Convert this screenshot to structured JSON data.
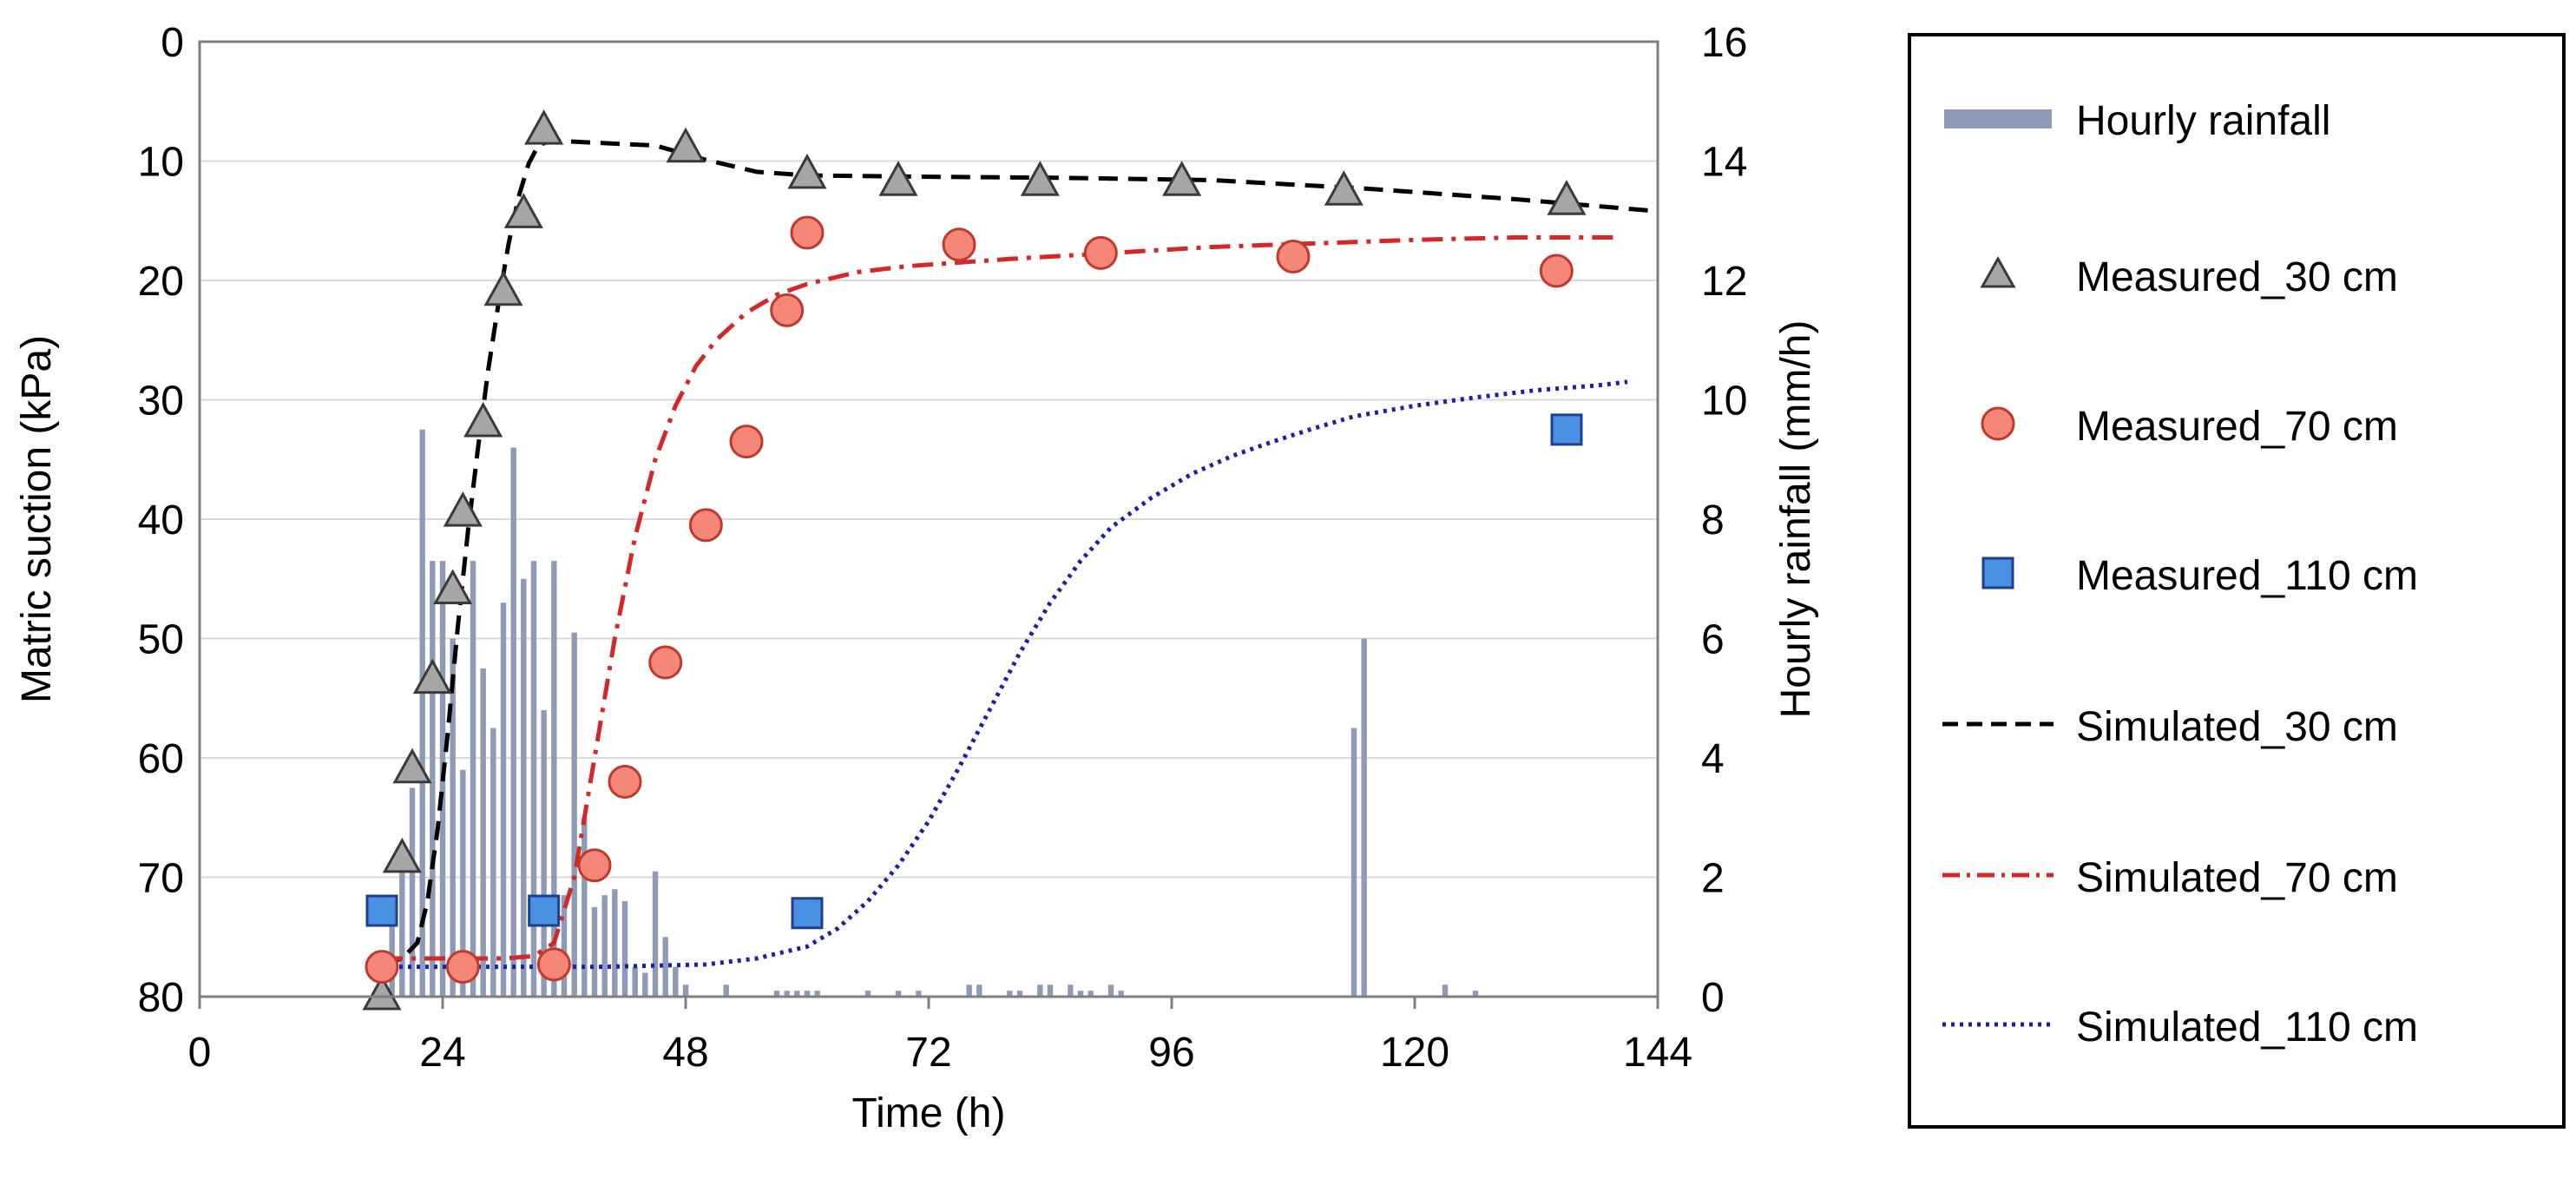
{
  "chart_data": {
    "type": "combo",
    "xlabel": "Time (h)",
    "ylabel_left": "Matric suction (kPa)",
    "ylabel_right": "Hourly rainfall (mm/h)",
    "x_range": [
      0,
      144
    ],
    "x_ticks": [
      "0",
      "24",
      "48",
      "72",
      "96",
      "120",
      "144"
    ],
    "y_left_range_top_to_bottom": [
      0,
      80
    ],
    "y_left_ticks": [
      "0",
      "10",
      "20",
      "30",
      "40",
      "50",
      "60",
      "70",
      "80"
    ],
    "y_right_range_bottom_to_top": [
      0,
      16
    ],
    "y_right_ticks": [
      "0",
      "2",
      "4",
      "6",
      "8",
      "10",
      "12",
      "14",
      "16"
    ],
    "grid": true,
    "legend_position": "right-outside",
    "legend": [
      {
        "key": "rain",
        "label": "Hourly rainfall"
      },
      {
        "key": "m30",
        "label": "Measured_30 cm"
      },
      {
        "key": "m70",
        "label": "Measured_70 cm"
      },
      {
        "key": "m110",
        "label": "Measured_110 cm"
      },
      {
        "key": "s30",
        "label": "Simulated_30 cm"
      },
      {
        "key": "s70",
        "label": "Simulated_70 cm"
      },
      {
        "key": "s110",
        "label": "Simulated_110 cm"
      }
    ],
    "colors": {
      "rain": "#8e9bb7",
      "tri_fill": "#a6a6a6",
      "tri_stroke": "#3a3a3a",
      "circ_fill": "#f4877a",
      "circ_stroke": "#c0392b",
      "sq_fill": "#4a90e2",
      "sq_stroke": "#1f3f8f",
      "s30": "#000000",
      "s70": "#d62728",
      "s110": "#1f1fa8",
      "grid": "#d9d9d9"
    },
    "rainfall": {
      "name": "Hourly rainfall",
      "units": "mm/h",
      "points": [
        [
          18,
          0.5
        ],
        [
          19,
          1.2
        ],
        [
          20,
          2.2
        ],
        [
          21,
          3.5
        ],
        [
          22,
          9.5
        ],
        [
          23,
          7.3
        ],
        [
          24,
          7.3
        ],
        [
          25,
          6.0
        ],
        [
          26,
          3.8
        ],
        [
          27,
          7.3
        ],
        [
          28,
          5.5
        ],
        [
          29,
          4.5
        ],
        [
          30,
          6.6
        ],
        [
          31,
          9.2
        ],
        [
          32,
          7.0
        ],
        [
          33,
          7.3
        ],
        [
          34,
          4.8
        ],
        [
          35,
          7.3
        ],
        [
          36,
          1.7
        ],
        [
          37,
          6.1
        ],
        [
          38,
          3.0
        ],
        [
          39,
          1.5
        ],
        [
          40,
          1.7
        ],
        [
          41,
          1.8
        ],
        [
          42,
          1.6
        ],
        [
          43,
          0.5
        ],
        [
          44,
          0.4
        ],
        [
          45,
          2.1
        ],
        [
          46,
          1.0
        ],
        [
          47,
          0.5
        ],
        [
          48,
          0.2
        ],
        [
          52,
          0.2
        ],
        [
          57,
          0.1
        ],
        [
          58,
          0.1
        ],
        [
          59,
          0.1
        ],
        [
          60,
          0.1
        ],
        [
          61,
          0.1
        ],
        [
          66,
          0.1
        ],
        [
          69,
          0.1
        ],
        [
          71,
          0.1
        ],
        [
          76,
          0.2
        ],
        [
          77,
          0.2
        ],
        [
          80,
          0.1
        ],
        [
          81,
          0.1
        ],
        [
          83,
          0.2
        ],
        [
          84,
          0.2
        ],
        [
          86,
          0.2
        ],
        [
          87,
          0.1
        ],
        [
          88,
          0.1
        ],
        [
          90,
          0.2
        ],
        [
          91,
          0.1
        ],
        [
          114,
          4.5
        ],
        [
          115,
          6.0
        ],
        [
          123,
          0.2
        ],
        [
          126,
          0.1
        ]
      ]
    },
    "series": [
      {
        "name": "Measured_30 cm",
        "kind": "marker",
        "marker": "triangle",
        "points": [
          [
            18,
            80
          ],
          [
            20,
            68.5
          ],
          [
            21,
            61
          ],
          [
            23,
            53.5
          ],
          [
            25,
            46
          ],
          [
            26,
            39.5
          ],
          [
            28,
            32
          ],
          [
            30,
            21
          ],
          [
            32,
            14.5
          ],
          [
            34,
            7.5
          ],
          [
            48,
            9
          ],
          [
            60,
            11.2
          ],
          [
            69,
            11.8
          ],
          [
            83,
            11.8
          ],
          [
            97,
            11.8
          ],
          [
            113,
            12.6
          ],
          [
            135,
            13.4
          ]
        ]
      },
      {
        "name": "Measured_70 cm",
        "kind": "marker",
        "marker": "circle",
        "points": [
          [
            18,
            77.5
          ],
          [
            26,
            77.5
          ],
          [
            35,
            77.3
          ],
          [
            39,
            69
          ],
          [
            42,
            62
          ],
          [
            46,
            52
          ],
          [
            50,
            40.5
          ],
          [
            54,
            33.5
          ],
          [
            58,
            22.5
          ],
          [
            60,
            16
          ],
          [
            75,
            17
          ],
          [
            89,
            17.7
          ],
          [
            108,
            18
          ],
          [
            134,
            19.2
          ]
        ]
      },
      {
        "name": "Measured_110 cm",
        "kind": "marker",
        "marker": "square",
        "points": [
          [
            18,
            72.8
          ],
          [
            34,
            72.8
          ],
          [
            60,
            73
          ],
          [
            135,
            32.5
          ]
        ]
      },
      {
        "name": "Simulated_30 cm",
        "kind": "line",
        "dash": "dashed",
        "points": [
          [
            18,
            77.3
          ],
          [
            20,
            76.8
          ],
          [
            21.5,
            75.5
          ],
          [
            22.5,
            72
          ],
          [
            23.5,
            66
          ],
          [
            24.5,
            58
          ],
          [
            25.5,
            49
          ],
          [
            26.5,
            41
          ],
          [
            27.5,
            34
          ],
          [
            28.5,
            27.5
          ],
          [
            29.5,
            22
          ],
          [
            30.5,
            17
          ],
          [
            31.5,
            13
          ],
          [
            32.5,
            10.2
          ],
          [
            33.5,
            8.6
          ],
          [
            35,
            8.3
          ],
          [
            40,
            8.5
          ],
          [
            45,
            8.7
          ],
          [
            50,
            9.9
          ],
          [
            55,
            10.9
          ],
          [
            60,
            11.2
          ],
          [
            70,
            11.3
          ],
          [
            85,
            11.4
          ],
          [
            100,
            11.6
          ],
          [
            115,
            12.3
          ],
          [
            130,
            13.2
          ],
          [
            144,
            14.2
          ]
        ]
      },
      {
        "name": "Simulated_70 cm",
        "kind": "line",
        "dash": "dashdot",
        "points": [
          [
            18,
            76.8
          ],
          [
            30,
            76.8
          ],
          [
            33,
            76.6
          ],
          [
            35,
            75.5
          ],
          [
            37,
            70
          ],
          [
            39,
            60
          ],
          [
            41,
            50
          ],
          [
            43,
            41.5
          ],
          [
            45,
            35
          ],
          [
            47,
            30.5
          ],
          [
            49,
            27.2
          ],
          [
            51,
            25
          ],
          [
            54,
            22.7
          ],
          [
            57,
            21.2
          ],
          [
            60,
            20.3
          ],
          [
            65,
            19.3
          ],
          [
            70,
            18.8
          ],
          [
            80,
            18.2
          ],
          [
            90,
            17.7
          ],
          [
            100,
            17.2
          ],
          [
            110,
            16.9
          ],
          [
            120,
            16.6
          ],
          [
            130,
            16.4
          ],
          [
            140,
            16.4
          ]
        ]
      },
      {
        "name": "Simulated_110 cm",
        "kind": "line",
        "dash": "dotted",
        "points": [
          [
            18,
            77.5
          ],
          [
            30,
            77.5
          ],
          [
            40,
            77.5
          ],
          [
            50,
            77.3
          ],
          [
            55,
            76.8
          ],
          [
            60,
            75.8
          ],
          [
            63,
            74.3
          ],
          [
            66,
            72
          ],
          [
            69,
            69
          ],
          [
            72,
            65.3
          ],
          [
            75,
            60.8
          ],
          [
            78,
            56
          ],
          [
            81,
            51.2
          ],
          [
            84,
            47
          ],
          [
            87,
            43.5
          ],
          [
            90,
            40.7
          ],
          [
            94,
            38.2
          ],
          [
            98,
            36.2
          ],
          [
            102,
            34.7
          ],
          [
            106,
            33.5
          ],
          [
            110,
            32.4
          ],
          [
            114,
            31.4
          ],
          [
            120,
            30.5
          ],
          [
            126,
            29.8
          ],
          [
            132,
            29.2
          ],
          [
            138,
            28.8
          ],
          [
            141,
            28.5
          ]
        ]
      }
    ]
  }
}
